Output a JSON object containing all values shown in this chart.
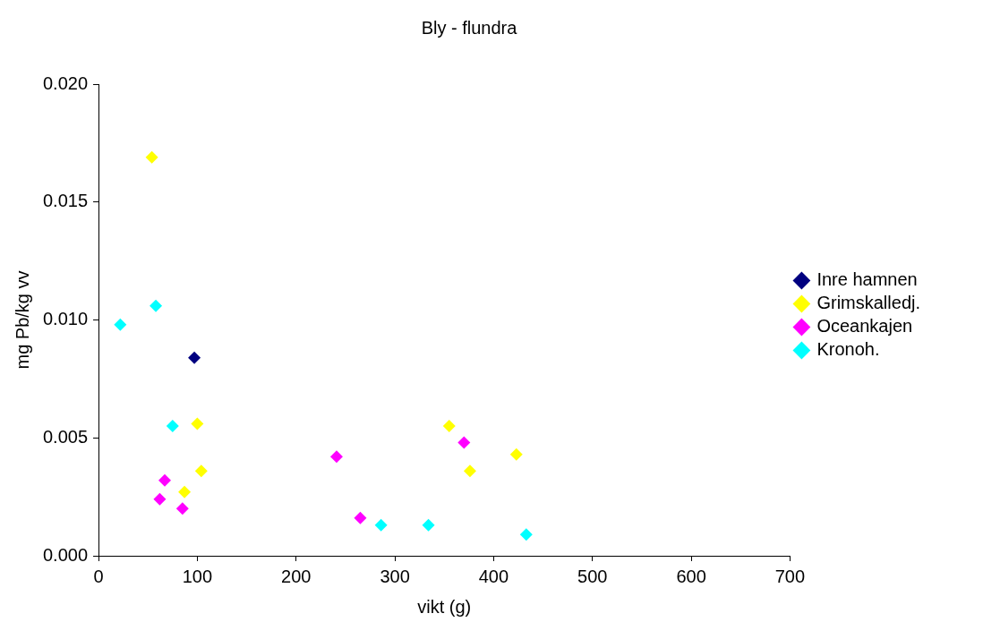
{
  "chart_data": {
    "type": "scatter",
    "title": "Bly - flundra",
    "xlabel": "vikt (g)",
    "ylabel": "mg Pb/kg vv",
    "xlim": [
      0,
      700
    ],
    "xticks": [
      0,
      100,
      200,
      300,
      400,
      500,
      600,
      700
    ],
    "ylim": [
      0,
      0.02
    ],
    "yticks": [
      {
        "value": 0,
        "label": "0.000"
      },
      {
        "value": 0.005,
        "label": "0.005"
      },
      {
        "value": 0.01,
        "label": "0.010"
      },
      {
        "value": 0.015,
        "label": "0.015"
      },
      {
        "value": 0.02,
        "label": "0.020"
      }
    ],
    "grid": false,
    "legend": "right",
    "marker": "diamond",
    "series": [
      {
        "name": "Inre hamnen",
        "color": "#000080",
        "x": [
          97
        ],
        "values": [
          0.0084
        ]
      },
      {
        "name": "Grimskalledj.",
        "color": "#ffff00",
        "x": [
          54,
          100,
          104,
          87,
          355,
          376,
          423
        ],
        "values": [
          0.0169,
          0.0056,
          0.0036,
          0.0027,
          0.0055,
          0.0036,
          0.0043
        ]
      },
      {
        "name": "Oceankajen",
        "color": "#ff00ff",
        "x": [
          67,
          62,
          85,
          241,
          265,
          370
        ],
        "values": [
          0.0032,
          0.0024,
          0.002,
          0.0042,
          0.0016,
          0.0048
        ]
      },
      {
        "name": "Kronoh.",
        "color": "#00ffff",
        "x": [
          22,
          58,
          75,
          286,
          334,
          433
        ],
        "values": [
          0.0098,
          0.0106,
          0.0055,
          0.0013,
          0.0013,
          0.0009
        ]
      }
    ]
  }
}
